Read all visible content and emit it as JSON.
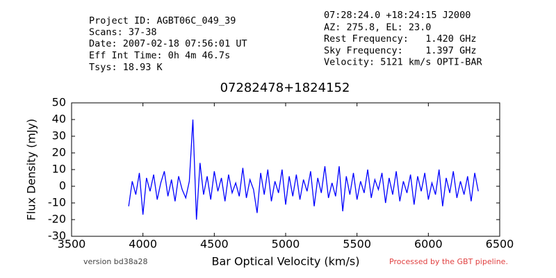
{
  "header": {
    "left": [
      "Project ID: AGBT06C_049_39",
      "Scans: 37-38",
      "Date: 2007-02-18 07:56:01 UT",
      "Eff Int Time: 0h 4m 46.7s",
      "Tsys: 18.93 K"
    ],
    "right": [
      "07:28:24.0 +18:24:15 J2000",
      "AZ: 275.8, EL: 23.0",
      "Rest Frequency:   1.420 GHz",
      "Sky Frequency:    1.397 GHz",
      "Velocity: 5121 km/s OPTI-BAR"
    ]
  },
  "footer": {
    "version": "version bd38a28",
    "pipeline": "Processed by the GBT pipeline."
  },
  "chart_data": {
    "type": "line",
    "title": "07282478+1824152",
    "x_label": "Bar Optical Velocity (km/s)",
    "y_label": "Flux Density (mJy)",
    "x": [
      3900,
      3925,
      3950,
      3975,
      4000,
      4025,
      4050,
      4075,
      4100,
      4125,
      4150,
      4175,
      4200,
      4225,
      4250,
      4275,
      4300,
      4325,
      4350,
      4375,
      4400,
      4425,
      4450,
      4475,
      4500,
      4525,
      4550,
      4575,
      4600,
      4625,
      4650,
      4675,
      4700,
      4725,
      4750,
      4775,
      4800,
      4825,
      4850,
      4875,
      4900,
      4925,
      4950,
      4975,
      5000,
      5025,
      5050,
      5075,
      5100,
      5125,
      5150,
      5175,
      5200,
      5225,
      5250,
      5275,
      5300,
      5325,
      5350,
      5375,
      5400,
      5425,
      5450,
      5475,
      5500,
      5525,
      5550,
      5575,
      5600,
      5625,
      5650,
      5675,
      5700,
      5725,
      5750,
      5775,
      5800,
      5825,
      5850,
      5875,
      5900,
      5925,
      5950,
      5975,
      6000,
      6025,
      6050,
      6075,
      6100,
      6125,
      6150,
      6175,
      6200,
      6225,
      6250,
      6275,
      6300,
      6325,
      6350
    ],
    "series": [
      {
        "color": "#0000ff",
        "values": [
          -12,
          3,
          -5,
          8,
          -17,
          5,
          -3,
          7,
          -8,
          2,
          9,
          -6,
          4,
          -9,
          6,
          -2,
          -7,
          3,
          40,
          -20,
          14,
          -5,
          6,
          -8,
          9,
          -3,
          5,
          -9,
          7,
          -4,
          2,
          -6,
          11,
          -7,
          4,
          -2,
          -16,
          8,
          -5,
          10,
          -9,
          3,
          -4,
          10,
          -11,
          6,
          -6,
          7,
          -8,
          4,
          -3,
          9,
          -12,
          5,
          -4,
          12,
          -7,
          2,
          -6,
          12,
          -15,
          6,
          -5,
          8,
          -8,
          3,
          -4,
          10,
          -7,
          4,
          -2,
          8,
          -10,
          5,
          -5,
          9,
          -9,
          3,
          -4,
          7,
          -11,
          6,
          -3,
          8,
          -8,
          2,
          -5,
          10,
          -12,
          5,
          -4,
          9,
          -7,
          3,
          -5,
          6,
          -9,
          8,
          -3
        ]
      }
    ],
    "xlim": [
      3500,
      6500
    ],
    "xticks": [
      3500,
      4000,
      4500,
      5000,
      5500,
      6000,
      6500
    ],
    "ylim": [
      -30,
      50
    ],
    "yticks": [
      -30,
      -20,
      -10,
      0,
      10,
      20,
      30,
      40,
      50
    ],
    "grid": false
  }
}
